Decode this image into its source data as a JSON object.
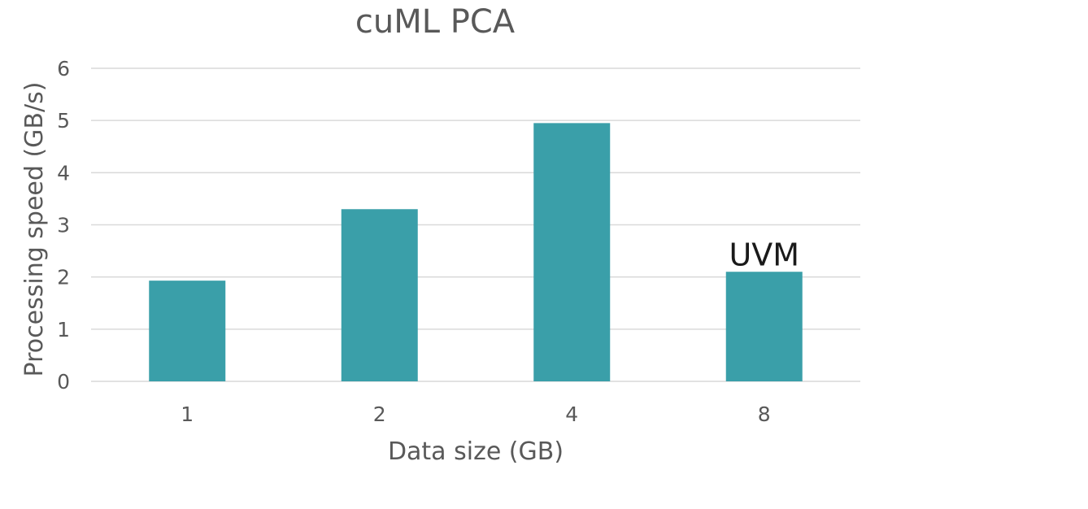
{
  "chart_data": {
    "type": "bar",
    "title": "cuML PCA",
    "xlabel": "Data size (GB)",
    "ylabel": "Processing speed (GB/s)",
    "categories": [
      "1",
      "2",
      "4",
      "8"
    ],
    "values": [
      1.93,
      3.3,
      4.95,
      2.1
    ],
    "ylim": [
      0,
      6
    ],
    "yticks": [
      "0",
      "1",
      "2",
      "3",
      "4",
      "5",
      "6"
    ],
    "grid": true,
    "legend": "none",
    "bar_color": "#3a9fa9",
    "annotations": [
      {
        "category": "8",
        "text": "UVM"
      }
    ]
  }
}
